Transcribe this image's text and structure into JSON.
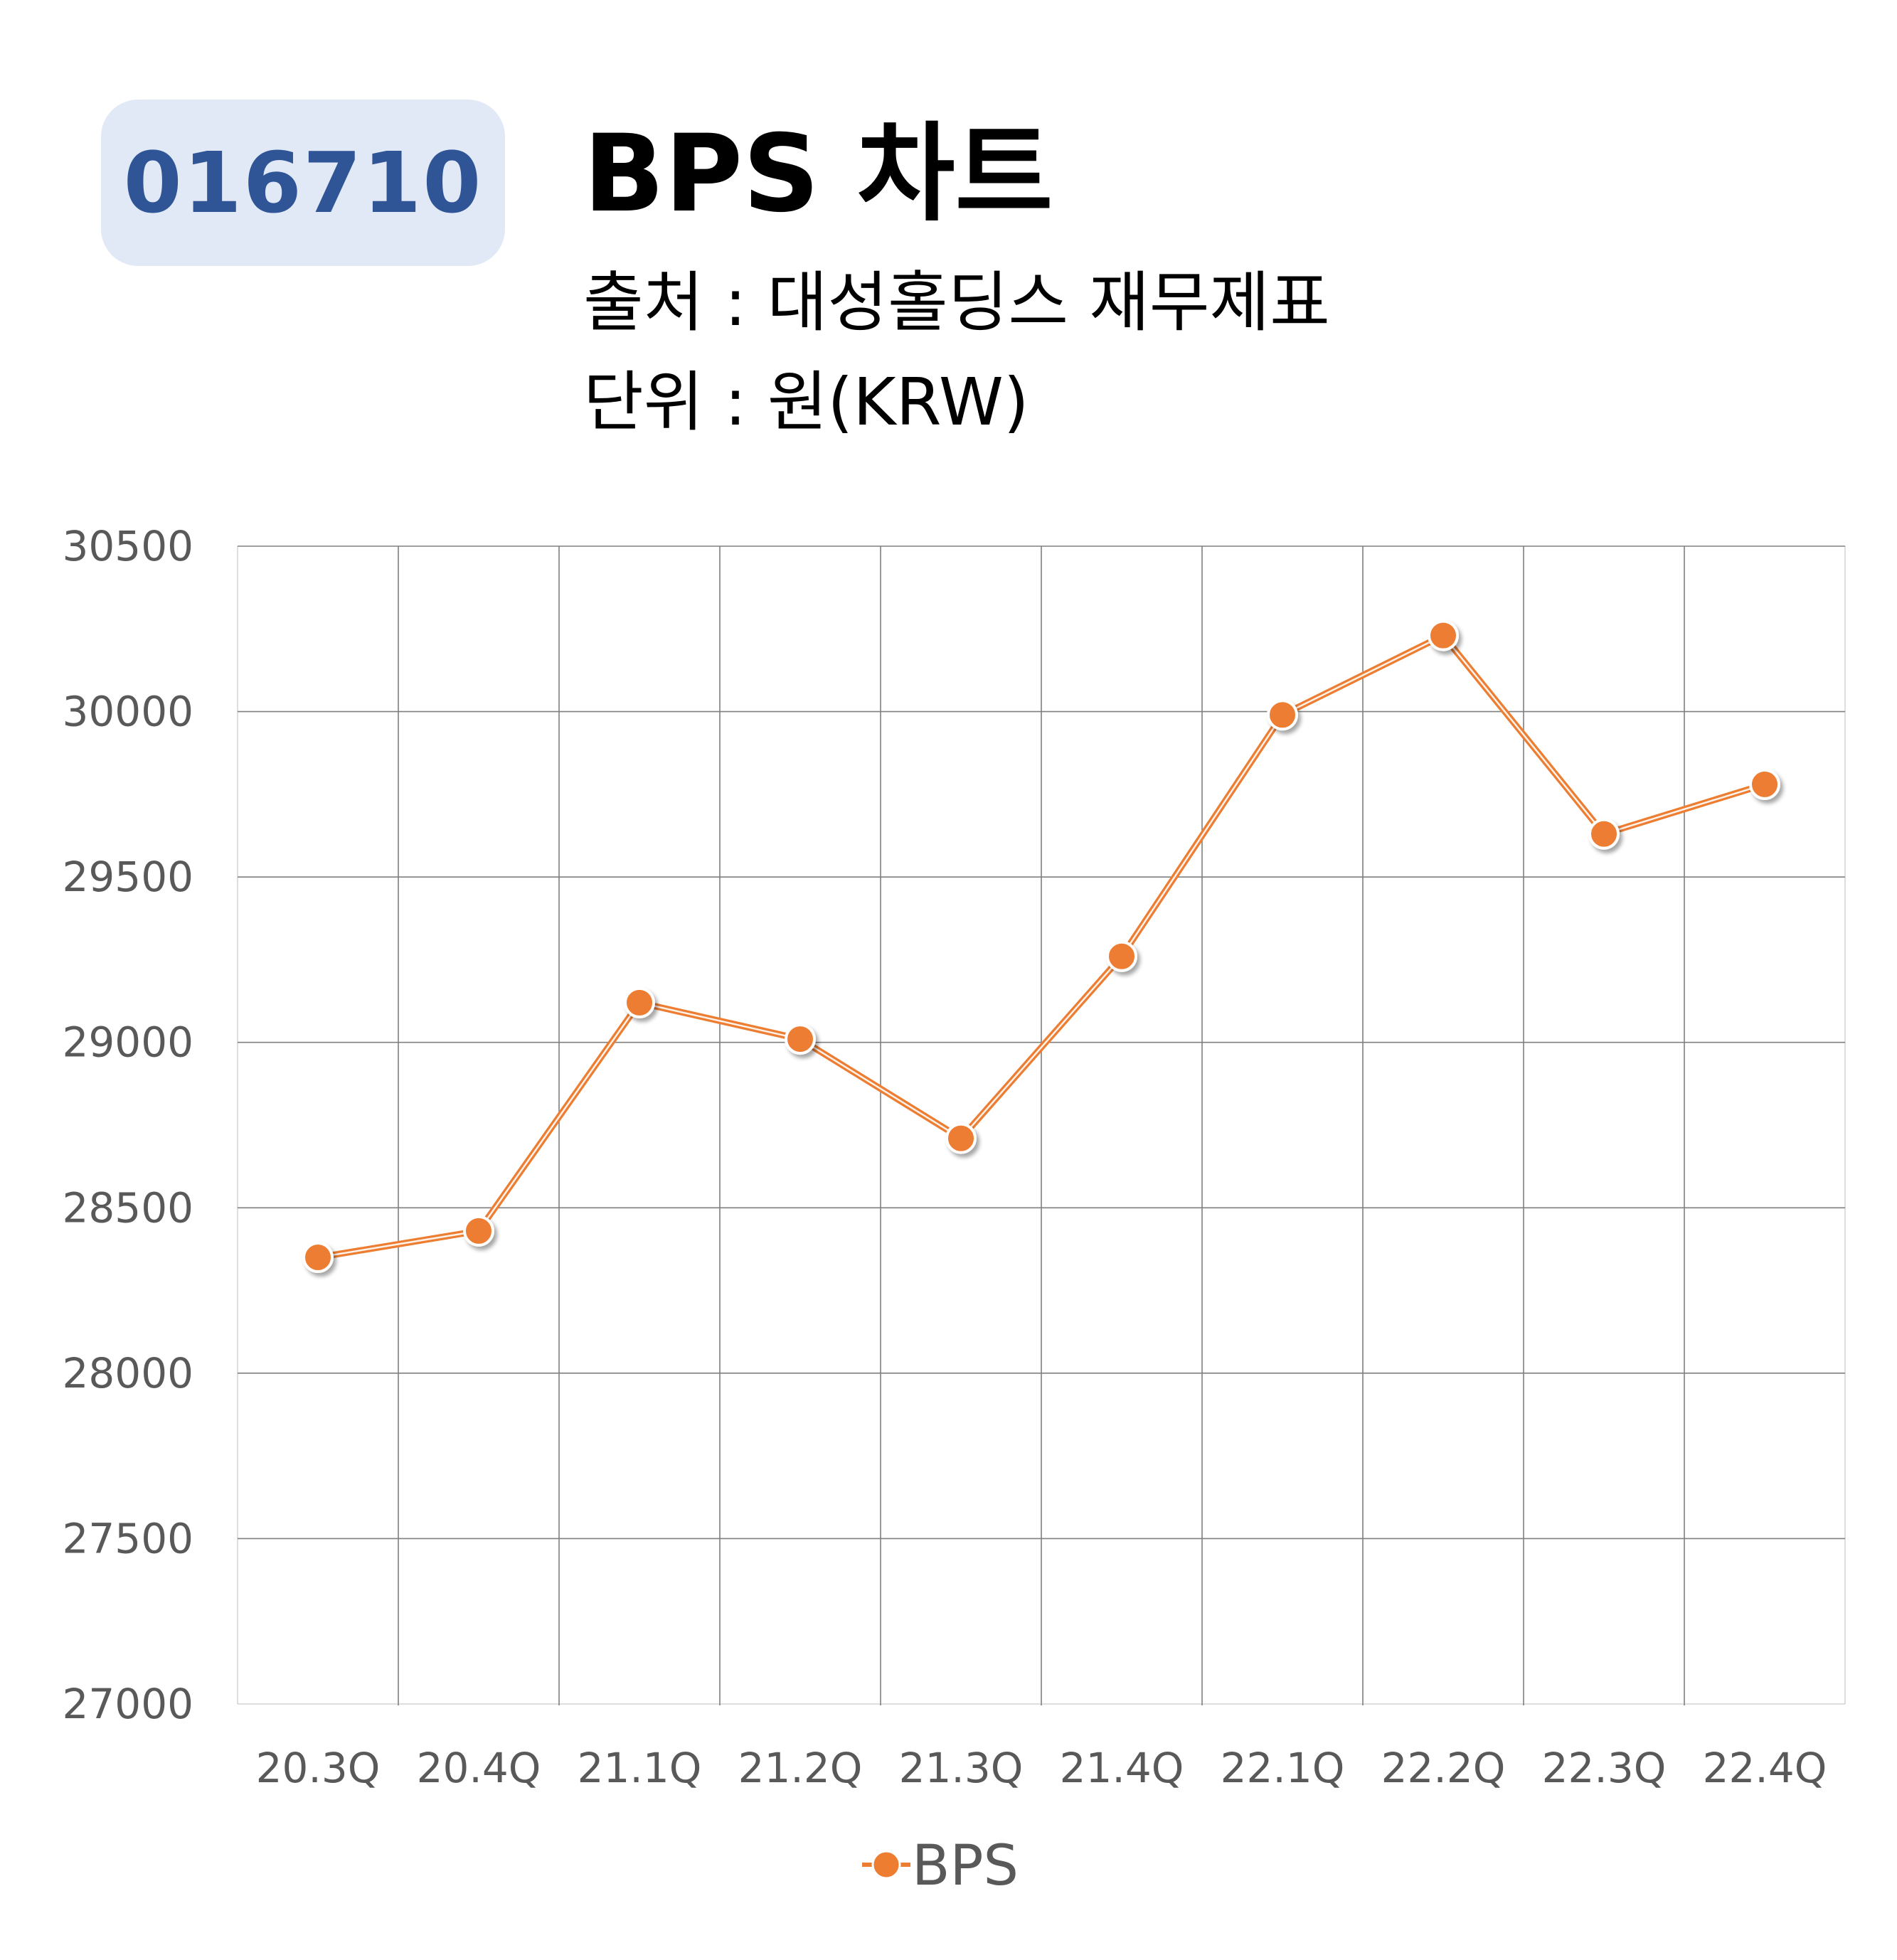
{
  "header": {
    "ticker": "016710",
    "title": "BPS 차트",
    "source": "출처 : 대성홀딩스 재무제표",
    "unit": "단위 : 원(KRW)"
  },
  "colors": {
    "series": "#ed7d31",
    "badge_bg": "#e2e9f6",
    "badge_text": "#2f5597",
    "grid": "#7f7f7f"
  },
  "chart_data": {
    "type": "line",
    "title": "BPS 차트",
    "categories": [
      "20.3Q",
      "20.4Q",
      "21.1Q",
      "21.2Q",
      "21.3Q",
      "21.4Q",
      "22.1Q",
      "22.2Q",
      "22.3Q",
      "22.4Q"
    ],
    "series": [
      {
        "name": "BPS",
        "values": [
          28350,
          28430,
          29120,
          29010,
          28710,
          29260,
          29990,
          30230,
          29630,
          29780
        ]
      }
    ],
    "ylim": [
      27000,
      30500
    ],
    "yticks": [
      30500,
      30000,
      29500,
      29000,
      28500,
      28000,
      27500,
      27000
    ],
    "grid": true,
    "legend": "bottom"
  }
}
